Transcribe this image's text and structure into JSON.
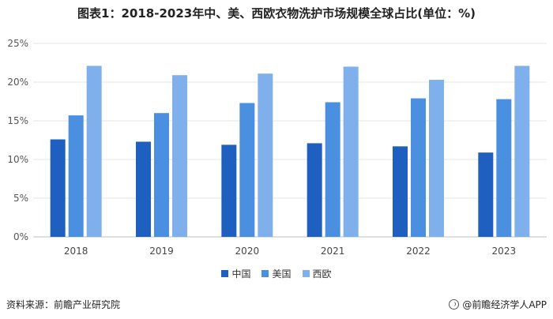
{
  "title": "图表1：2018-2023年中、美、西欧衣物洗护市场规模全球占比(单位：%)",
  "footer": {
    "source": "资料来源：前瞻产业研究院",
    "brand": "@前瞻经济学人APP"
  },
  "chart_data": {
    "type": "bar",
    "categories": [
      "2018",
      "2019",
      "2020",
      "2021",
      "2022",
      "2023"
    ],
    "series": [
      {
        "name": "中国",
        "color": "#1f5fbf",
        "values": [
          12.6,
          12.3,
          11.9,
          12.1,
          11.7,
          10.9
        ]
      },
      {
        "name": "美国",
        "color": "#4a8fe0",
        "values": [
          15.7,
          16.0,
          17.3,
          17.4,
          17.9,
          17.8
        ]
      },
      {
        "name": "西欧",
        "color": "#7fb0ec",
        "values": [
          22.1,
          20.9,
          21.1,
          22.0,
          20.3,
          22.1
        ]
      }
    ],
    "yticks": [
      "0%",
      "5%",
      "10%",
      "15%",
      "20%",
      "25%"
    ],
    "ylim": [
      0,
      25
    ],
    "grid": true,
    "legend_position": "bottom"
  }
}
